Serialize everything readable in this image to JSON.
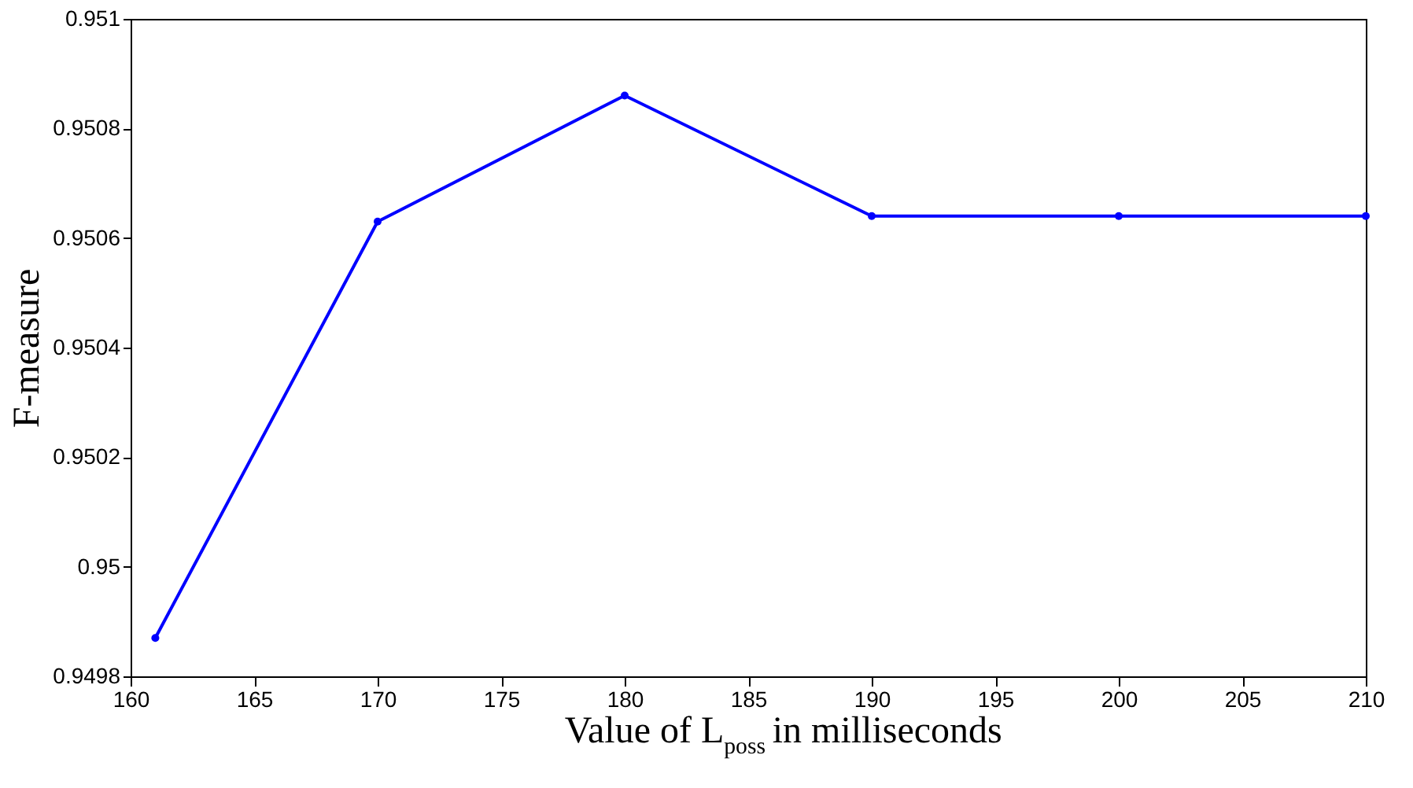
{
  "chart_data": {
    "type": "line",
    "xlabel": "Value of L$_{poss}$ in milliseconds",
    "ylabel": "F-measure",
    "x": [
      161,
      170,
      180,
      190,
      200,
      210
    ],
    "series": [
      {
        "color": "#0000ff",
        "values": [
          0.94987,
          0.95063,
          0.95086,
          0.95064,
          0.95064,
          0.95064
        ]
      }
    ],
    "xlim": [
      160,
      210
    ],
    "xticks": [
      160,
      165,
      170,
      175,
      180,
      185,
      190,
      195,
      200,
      205,
      210
    ],
    "ylim": [
      0.9498,
      0.951
    ],
    "yticks": [
      0.9498,
      0.95,
      0.9502,
      0.9504,
      0.9506,
      0.9508,
      0.951
    ],
    "marker": "circle",
    "line_style": "solid",
    "grid": false,
    "legend": false
  }
}
